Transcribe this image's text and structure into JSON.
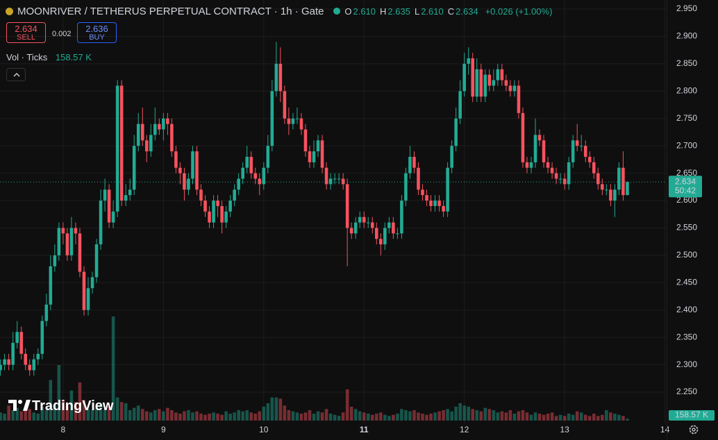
{
  "chart_data": {
    "type": "candlestick",
    "title": "MOONRIVER / TETHERUS PERPETUAL CONTRACT · 1h · Gate",
    "ohlc_legend": [
      {
        "label": "O",
        "value": "2.610"
      },
      {
        "label": "H",
        "value": "2.635"
      },
      {
        "label": "L",
        "value": "2.610"
      },
      {
        "label": "C",
        "value": "2.634"
      }
    ],
    "change": "+0.026 (+1.00%)",
    "sell_price": "2.634",
    "sell_label": "SELL",
    "spread": "0.002",
    "buy_price": "2.636",
    "buy_label": "BUY",
    "volume_legend": "Vol · Ticks",
    "volume_legend_value": "158.57 K",
    "price_tag": "2.634",
    "countdown": "50:42",
    "volume_tag": "158.57 K",
    "watermark": "TradingView",
    "up_color": "#22ab94",
    "down_color": "#f7525f",
    "xlim": [
      -0.1,
      159.4
    ],
    "xticks": [
      {
        "value": 15,
        "label": "8"
      },
      {
        "value": 39,
        "label": "9"
      },
      {
        "value": 63,
        "label": "10"
      },
      {
        "value": 87,
        "label": "11"
      },
      {
        "value": 111,
        "label": "12"
      },
      {
        "value": 135,
        "label": "13"
      },
      {
        "value": 159,
        "label": "14"
      }
    ],
    "ylim": [
      2.193,
      2.9665
    ],
    "yticks": [
      {
        "value": 2.25,
        "label": "2.250"
      },
      {
        "value": 2.3,
        "label": "2.300"
      },
      {
        "value": 2.35,
        "label": "2.350"
      },
      {
        "value": 2.4,
        "label": "2.400"
      },
      {
        "value": 2.45,
        "label": "2.450"
      },
      {
        "value": 2.5,
        "label": "2.500"
      },
      {
        "value": 2.55,
        "label": "2.550"
      },
      {
        "value": 2.6,
        "label": "2.600"
      },
      {
        "value": 2.65,
        "label": "2.650"
      },
      {
        "value": 2.7,
        "label": "2.700"
      },
      {
        "value": 2.75,
        "label": "2.750"
      },
      {
        "value": 2.8,
        "label": "2.800"
      },
      {
        "value": 2.85,
        "label": "2.850"
      },
      {
        "value": 2.9,
        "label": "2.900"
      },
      {
        "value": 2.95,
        "label": "2.950"
      }
    ],
    "grid": true,
    "open": [
      2.29,
      2.3,
      2.31,
      2.3,
      2.34,
      2.36,
      2.32,
      2.3,
      2.29,
      2.31,
      2.32,
      2.38,
      2.41,
      2.48,
      2.5,
      2.55,
      2.54,
      2.5,
      2.55,
      2.54,
      2.47,
      2.4,
      2.44,
      2.46,
      2.52,
      2.6,
      2.62,
      2.56,
      2.58,
      2.81,
      2.6,
      2.61,
      2.62,
      2.7,
      2.74,
      2.71,
      2.69,
      2.72,
      2.74,
      2.73,
      2.75,
      2.74,
      2.69,
      2.66,
      2.65,
      2.62,
      2.64,
      2.69,
      2.62,
      2.6,
      2.58,
      2.56,
      2.6,
      2.59,
      2.56,
      2.58,
      2.6,
      2.62,
      2.64,
      2.66,
      2.68,
      2.65,
      2.64,
      2.63,
      2.66,
      2.7,
      2.8,
      2.85,
      2.8,
      2.75,
      2.74,
      2.75,
      2.75,
      2.73,
      2.69,
      2.67,
      2.69,
      2.71,
      2.66,
      2.63,
      2.64,
      2.64,
      2.64,
      2.63,
      2.55,
      2.54,
      2.56,
      2.57,
      2.56,
      2.56,
      2.55,
      2.53,
      2.52,
      2.55,
      2.56,
      2.54,
      2.54,
      2.6,
      2.65,
      2.68,
      2.66,
      2.62,
      2.61,
      2.6,
      2.59,
      2.6,
      2.59,
      2.58,
      2.66,
      2.7,
      2.75,
      2.8,
      2.85,
      2.86,
      2.79,
      2.84,
      2.79,
      2.83,
      2.81,
      2.82,
      2.84,
      2.82,
      2.81,
      2.8,
      2.81,
      2.76,
      2.67,
      2.66,
      2.67,
      2.72,
      2.71,
      2.67,
      2.66,
      2.65,
      2.64,
      2.64,
      2.63,
      2.67,
      2.71,
      2.7,
      2.7,
      2.68,
      2.67,
      2.65,
      2.63,
      2.62,
      2.62,
      2.6,
      2.62,
      2.66,
      2.61
    ],
    "high": [
      2.31,
      2.32,
      2.32,
      2.36,
      2.38,
      2.37,
      2.33,
      2.31,
      2.32,
      2.33,
      2.39,
      2.43,
      2.5,
      2.52,
      2.56,
      2.56,
      2.55,
      2.57,
      2.56,
      2.55,
      2.48,
      2.46,
      2.47,
      2.53,
      2.62,
      2.64,
      2.63,
      2.6,
      2.82,
      2.82,
      2.63,
      2.64,
      2.72,
      2.76,
      2.77,
      2.72,
      2.74,
      2.77,
      2.75,
      2.76,
      2.76,
      2.75,
      2.7,
      2.67,
      2.66,
      2.65,
      2.7,
      2.7,
      2.63,
      2.61,
      2.59,
      2.61,
      2.61,
      2.6,
      2.59,
      2.61,
      2.63,
      2.65,
      2.67,
      2.7,
      2.69,
      2.66,
      2.65,
      2.67,
      2.72,
      2.82,
      2.89,
      2.88,
      2.81,
      2.77,
      2.76,
      2.77,
      2.76,
      2.74,
      2.7,
      2.71,
      2.72,
      2.72,
      2.67,
      2.65,
      2.65,
      2.65,
      2.65,
      2.64,
      2.56,
      2.57,
      2.58,
      2.58,
      2.57,
      2.57,
      2.56,
      2.54,
      2.56,
      2.57,
      2.57,
      2.55,
      2.61,
      2.66,
      2.7,
      2.69,
      2.67,
      2.63,
      2.62,
      2.61,
      2.61,
      2.61,
      2.6,
      2.67,
      2.71,
      2.77,
      2.82,
      2.87,
      2.88,
      2.87,
      2.86,
      2.85,
      2.84,
      2.84,
      2.84,
      2.85,
      2.85,
      2.83,
      2.82,
      2.82,
      2.82,
      2.77,
      2.68,
      2.68,
      2.75,
      2.73,
      2.72,
      2.68,
      2.67,
      2.66,
      2.65,
      2.65,
      2.68,
      2.72,
      2.74,
      2.72,
      2.71,
      2.69,
      2.68,
      2.66,
      2.64,
      2.63,
      2.63,
      2.63,
      2.67,
      2.69,
      2.635
    ],
    "low": [
      2.28,
      2.29,
      2.29,
      2.29,
      2.33,
      2.31,
      2.29,
      2.28,
      2.28,
      2.3,
      2.31,
      2.37,
      2.4,
      2.47,
      2.49,
      2.52,
      2.49,
      2.49,
      2.52,
      2.46,
      2.39,
      2.39,
      2.43,
      2.45,
      2.51,
      2.58,
      2.55,
      2.55,
      2.57,
      2.59,
      2.59,
      2.6,
      2.61,
      2.69,
      2.7,
      2.67,
      2.68,
      2.71,
      2.72,
      2.71,
      2.72,
      2.68,
      2.65,
      2.63,
      2.6,
      2.61,
      2.63,
      2.61,
      2.59,
      2.57,
      2.55,
      2.55,
      2.57,
      2.54,
      2.55,
      2.57,
      2.59,
      2.61,
      2.63,
      2.65,
      2.64,
      2.63,
      2.61,
      2.62,
      2.65,
      2.69,
      2.79,
      2.78,
      2.74,
      2.72,
      2.73,
      2.74,
      2.72,
      2.68,
      2.66,
      2.66,
      2.68,
      2.65,
      2.62,
      2.62,
      2.63,
      2.63,
      2.62,
      2.48,
      2.53,
      2.53,
      2.55,
      2.55,
      2.55,
      2.54,
      2.52,
      2.5,
      2.51,
      2.54,
      2.53,
      2.53,
      2.53,
      2.59,
      2.64,
      2.65,
      2.61,
      2.6,
      2.59,
      2.58,
      2.58,
      2.58,
      2.57,
      2.57,
      2.65,
      2.69,
      2.74,
      2.79,
      2.83,
      2.78,
      2.78,
      2.78,
      2.78,
      2.8,
      2.8,
      2.81,
      2.81,
      2.8,
      2.79,
      2.79,
      2.75,
      2.66,
      2.65,
      2.65,
      2.66,
      2.7,
      2.66,
      2.65,
      2.64,
      2.63,
      2.63,
      2.62,
      2.62,
      2.66,
      2.69,
      2.69,
      2.67,
      2.66,
      2.64,
      2.62,
      2.61,
      2.61,
      2.59,
      2.57,
      2.61,
      2.6,
      2.61
    ],
    "close": [
      2.3,
      2.31,
      2.3,
      2.34,
      2.36,
      2.32,
      2.3,
      2.29,
      2.31,
      2.32,
      2.38,
      2.41,
      2.48,
      2.5,
      2.55,
      2.54,
      2.5,
      2.55,
      2.54,
      2.47,
      2.4,
      2.44,
      2.46,
      2.52,
      2.6,
      2.62,
      2.56,
      2.58,
      2.81,
      2.6,
      2.61,
      2.62,
      2.7,
      2.74,
      2.71,
      2.69,
      2.72,
      2.74,
      2.73,
      2.75,
      2.74,
      2.69,
      2.66,
      2.65,
      2.62,
      2.64,
      2.69,
      2.62,
      2.6,
      2.58,
      2.56,
      2.6,
      2.59,
      2.56,
      2.58,
      2.6,
      2.62,
      2.64,
      2.66,
      2.68,
      2.65,
      2.64,
      2.63,
      2.66,
      2.7,
      2.8,
      2.85,
      2.8,
      2.75,
      2.74,
      2.75,
      2.75,
      2.73,
      2.69,
      2.67,
      2.69,
      2.71,
      2.66,
      2.63,
      2.64,
      2.64,
      2.64,
      2.63,
      2.55,
      2.54,
      2.56,
      2.57,
      2.56,
      2.56,
      2.55,
      2.53,
      2.52,
      2.55,
      2.56,
      2.54,
      2.54,
      2.6,
      2.65,
      2.68,
      2.66,
      2.62,
      2.61,
      2.6,
      2.59,
      2.6,
      2.59,
      2.58,
      2.66,
      2.7,
      2.75,
      2.8,
      2.85,
      2.86,
      2.79,
      2.84,
      2.79,
      2.83,
      2.81,
      2.82,
      2.84,
      2.82,
      2.81,
      2.8,
      2.81,
      2.76,
      2.67,
      2.66,
      2.67,
      2.72,
      2.71,
      2.67,
      2.66,
      2.65,
      2.64,
      2.64,
      2.63,
      2.67,
      2.71,
      2.7,
      2.7,
      2.68,
      2.67,
      2.65,
      2.63,
      2.62,
      2.62,
      2.6,
      2.62,
      2.66,
      2.61,
      2.634
    ],
    "volume": [
      700,
      600,
      1300,
      900,
      1100,
      800,
      900,
      1000,
      700,
      600,
      1200,
      900,
      3500,
      1400,
      4800,
      1800,
      1300,
      2600,
      1600,
      3300,
      1800,
      1000,
      900,
      1100,
      1400,
      900,
      1200,
      9000,
      2000,
      1600,
      1500,
      900,
      1100,
      1300,
      1000,
      800,
      700,
      900,
      1000,
      800,
      1100,
      900,
      700,
      600,
      800,
      900,
      700,
      800,
      600,
      500,
      600,
      700,
      600,
      500,
      800,
      600,
      700,
      900,
      800,
      900,
      700,
      600,
      800,
      1200,
      1500,
      2000,
      2000,
      1900,
      1300,
      900,
      800,
      700,
      600,
      700,
      900,
      600,
      800,
      700,
      1000,
      600,
      500,
      400,
      700,
      2700,
      1200,
      1000,
      800,
      700,
      600,
      500,
      600,
      700,
      500,
      400,
      500,
      600,
      1000,
      900,
      800,
      900,
      700,
      600,
      500,
      600,
      700,
      800,
      900,
      1000,
      800,
      1200,
      1500,
      1300,
      1200,
      1000,
      900,
      800,
      1100,
      1000,
      900,
      700,
      800,
      700,
      900,
      600,
      800,
      900,
      700,
      500,
      700,
      600,
      500,
      600,
      700,
      400,
      500,
      400,
      600,
      500,
      800,
      700,
      500,
      400,
      600,
      400,
      500,
      900,
      700,
      600,
      500,
      400,
      158.57
    ]
  }
}
